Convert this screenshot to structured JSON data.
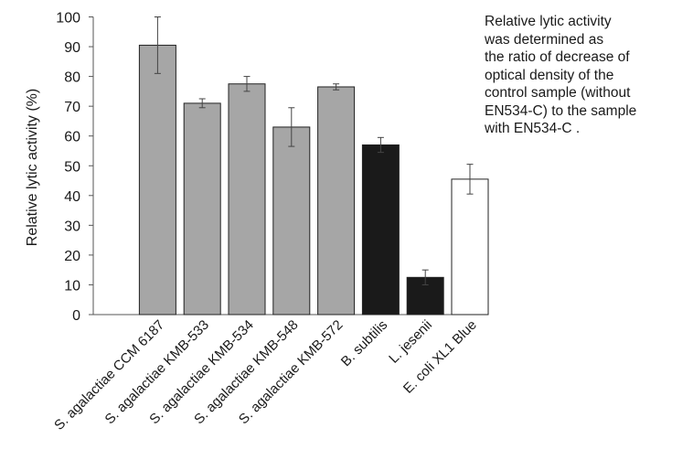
{
  "chart_data": {
    "type": "bar",
    "title": "",
    "xlabel": "",
    "ylabel": "Relative lytic activity (%)",
    "ylim": [
      0,
      100
    ],
    "yticks": [
      0,
      10,
      20,
      30,
      40,
      50,
      60,
      70,
      80,
      90,
      100
    ],
    "grid": false,
    "categories": [
      "S. agalactiae CCM 6187",
      "S. agalactiae KMB-533",
      "S. agalactiae KMB-534",
      "S. agalactiae KMB-548",
      "S. agalactiae KMB-572",
      "B. subtilis",
      "L. jesenii",
      "E. coli XL1 Blue"
    ],
    "values": [
      90.5,
      71,
      77.5,
      63,
      76.5,
      57,
      12.5,
      45.5
    ],
    "errors": [
      9.5,
      1.5,
      2.5,
      6.5,
      1.0,
      2.5,
      2.5,
      5.0
    ],
    "colors": [
      "#a6a6a6",
      "#a6a6a6",
      "#a6a6a6",
      "#a6a6a6",
      "#a6a6a6",
      "#1a1a1a",
      "#1a1a1a",
      "#ffffff"
    ]
  },
  "annotation": {
    "lines": [
      "Relative lytic activity",
      "was determined as",
      "the ratio of decrease of",
      "optical density of the",
      "control sample (without",
      "EN534-C) to the sample",
      "with EN534-C ."
    ]
  }
}
